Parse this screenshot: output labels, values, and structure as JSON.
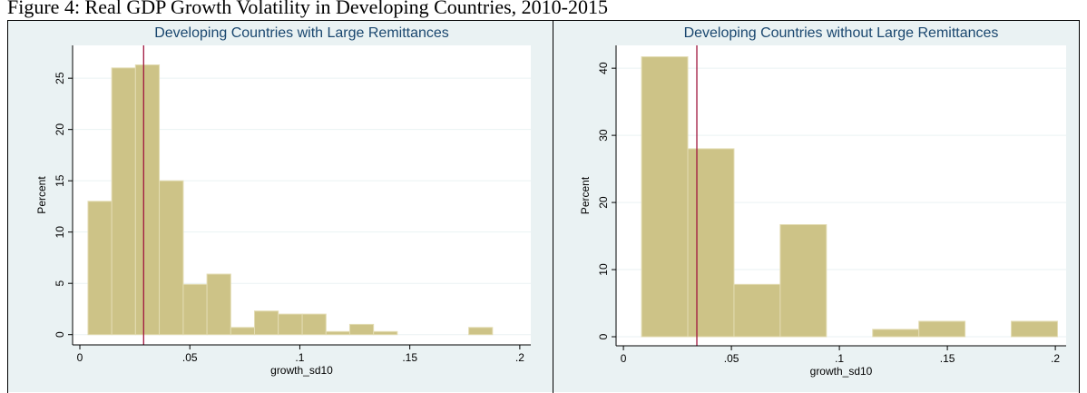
{
  "title": "Figure 4: Real GDP Growth Volatility in Developing Countries, 2010-2015",
  "chart_data": [
    {
      "type": "histogram",
      "title": "Developing Countries with Large Remittances",
      "x_label": "growth_sd10",
      "y_label": "Percent",
      "color": "#cdc387",
      "grid": true,
      "bins": [
        0.0037,
        0.0145,
        0.0253,
        0.0361,
        0.047,
        0.0578,
        0.0686,
        0.0794,
        0.0902,
        0.1011,
        0.1119,
        0.1227,
        0.1335,
        0.1443,
        0.1552,
        0.166,
        0.1768,
        0.1876
      ],
      "values": [
        13,
        26,
        26.3,
        15,
        4.9,
        5.9,
        0.7,
        2.3,
        2,
        2,
        0.3,
        1,
        0.3,
        0,
        0,
        0,
        0.7
      ],
      "reference_line": {
        "value": 0.029,
        "color": "#a0153e"
      },
      "xlim": [
        -0.0033,
        0.205
      ],
      "ylim": [
        -1,
        28.2
      ],
      "xticks": [
        0,
        {
          "value": 0.05,
          "label": ".05"
        },
        {
          "value": 0.1,
          "label": ".1"
        },
        {
          "value": 0.15,
          "label": ".15"
        },
        {
          "value": 0.2,
          "label": ".2"
        }
      ],
      "yticks": [
        0,
        5,
        10,
        15,
        20,
        25
      ]
    },
    {
      "type": "histogram",
      "title": "Developing Countries without Large Remittances",
      "x_label": "growth_sd10",
      "y_label": "Percent",
      "color": "#cdc387",
      "grid": true,
      "bins": [
        0.0084,
        0.0298,
        0.0512,
        0.0726,
        0.094,
        0.1154,
        0.1368,
        0.1582,
        0.1796,
        0.201
      ],
      "values": [
        41.7,
        28,
        7.8,
        16.7,
        0,
        1.1,
        2.3,
        0,
        2.3
      ],
      "reference_line": {
        "value": 0.034,
        "color": "#a0153e"
      },
      "xlim": [
        -0.0034,
        0.205
      ],
      "ylim": [
        -1.35,
        43.4
      ],
      "xticks": [
        0,
        {
          "value": 0.05,
          "label": ".05"
        },
        {
          "value": 0.1,
          "label": ".1"
        },
        {
          "value": 0.15,
          "label": ".15"
        },
        {
          "value": 0.2,
          "label": ".2"
        }
      ],
      "yticks": [
        0,
        10,
        20,
        30,
        40
      ]
    }
  ]
}
